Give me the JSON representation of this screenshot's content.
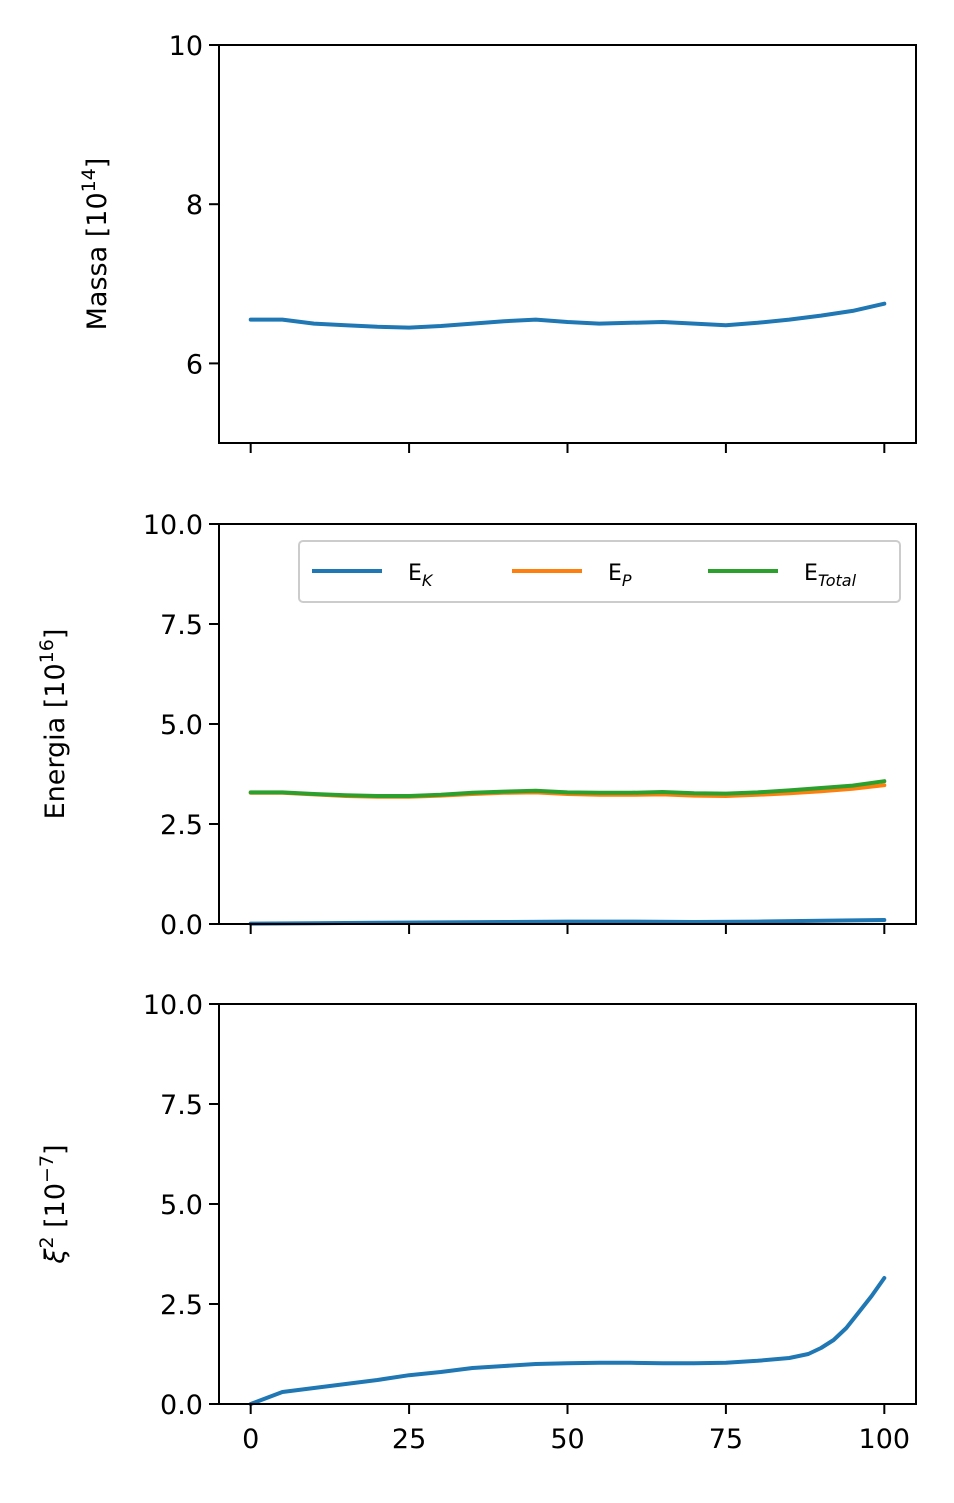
{
  "chart_data": [
    {
      "type": "line",
      "ylabel": "Massa [10",
      "ylabel_exp": "14",
      "ylabel_close": "]",
      "ylim": [
        5,
        10
      ],
      "yticks": [
        6,
        8,
        10
      ],
      "ytick_labels": [
        "6",
        "8",
        "10"
      ],
      "xlim": [
        -5,
        105
      ],
      "xticks": [
        0,
        25,
        50,
        75,
        100
      ],
      "show_xtick_labels": false,
      "grid": false,
      "series": [
        {
          "color": "#1f77b4",
          "x": [
            0,
            5,
            10,
            15,
            20,
            25,
            30,
            35,
            40,
            45,
            50,
            55,
            60,
            65,
            70,
            75,
            80,
            85,
            90,
            95,
            100
          ],
          "y": [
            6.55,
            6.55,
            6.5,
            6.48,
            6.46,
            6.45,
            6.47,
            6.5,
            6.53,
            6.55,
            6.52,
            6.5,
            6.51,
            6.52,
            6.5,
            6.48,
            6.51,
            6.55,
            6.6,
            6.66,
            6.75
          ]
        }
      ]
    },
    {
      "type": "line",
      "ylabel": "Energia [10",
      "ylabel_exp": "16",
      "ylabel_close": "]",
      "ylim": [
        0,
        10
      ],
      "yticks": [
        0,
        2.5,
        5,
        7.5,
        10
      ],
      "ytick_labels": [
        "0.0",
        "2.5",
        "5.0",
        "7.5",
        "10.0"
      ],
      "xlim": [
        -5,
        105
      ],
      "xticks": [
        0,
        25,
        50,
        75,
        100
      ],
      "show_xtick_labels": false,
      "grid": false,
      "legend_loc": "upper-right",
      "legend_ncol": 3,
      "series": [
        {
          "name": "E",
          "name_sub": "K",
          "color": "#1f77b4",
          "x": [
            0,
            10,
            20,
            30,
            40,
            50,
            60,
            70,
            80,
            90,
            100
          ],
          "y": [
            0.01,
            0.02,
            0.03,
            0.04,
            0.05,
            0.06,
            0.06,
            0.05,
            0.06,
            0.08,
            0.1
          ]
        },
        {
          "name": "E",
          "name_sub": "P",
          "color": "#ff7f0e",
          "x": [
            0,
            5,
            10,
            15,
            20,
            25,
            30,
            35,
            40,
            45,
            50,
            55,
            60,
            65,
            70,
            75,
            80,
            85,
            90,
            95,
            100
          ],
          "y": [
            3.28,
            3.28,
            3.24,
            3.2,
            3.18,
            3.18,
            3.21,
            3.25,
            3.28,
            3.29,
            3.25,
            3.23,
            3.23,
            3.24,
            3.21,
            3.2,
            3.23,
            3.27,
            3.32,
            3.38,
            3.47
          ]
        },
        {
          "name": "E",
          "name_sub": "Total",
          "color": "#2ca02c",
          "x": [
            0,
            5,
            10,
            15,
            20,
            25,
            30,
            35,
            40,
            45,
            50,
            55,
            60,
            65,
            70,
            75,
            80,
            85,
            90,
            95,
            100
          ],
          "y": [
            3.29,
            3.29,
            3.25,
            3.22,
            3.2,
            3.2,
            3.23,
            3.28,
            3.31,
            3.33,
            3.29,
            3.28,
            3.28,
            3.3,
            3.27,
            3.26,
            3.29,
            3.34,
            3.4,
            3.46,
            3.57
          ]
        }
      ]
    },
    {
      "type": "line",
      "ylabel": "ξ",
      "ylabel_exp": "2",
      "ylabel_rest": " [10",
      "ylabel_exp2": "−7",
      "ylabel_close": "]",
      "ylim": [
        0,
        10
      ],
      "yticks": [
        0,
        2.5,
        5,
        7.5,
        10
      ],
      "ytick_labels": [
        "0.0",
        "2.5",
        "5.0",
        "7.5",
        "10.0"
      ],
      "xlim": [
        -5,
        105
      ],
      "xticks": [
        0,
        25,
        50,
        75,
        100
      ],
      "xtick_labels": [
        "0",
        "25",
        "50",
        "75",
        "100"
      ],
      "show_xtick_labels": true,
      "grid": false,
      "series": [
        {
          "color": "#1f77b4",
          "x": [
            0,
            5,
            10,
            15,
            20,
            25,
            30,
            35,
            40,
            45,
            50,
            55,
            60,
            65,
            70,
            75,
            80,
            85,
            88,
            90,
            92,
            94,
            96,
            98,
            100
          ],
          "y": [
            0.0,
            0.3,
            0.4,
            0.5,
            0.6,
            0.72,
            0.8,
            0.9,
            0.95,
            1.0,
            1.02,
            1.03,
            1.03,
            1.02,
            1.02,
            1.03,
            1.08,
            1.15,
            1.25,
            1.4,
            1.6,
            1.9,
            2.3,
            2.7,
            3.15
          ]
        }
      ]
    }
  ]
}
